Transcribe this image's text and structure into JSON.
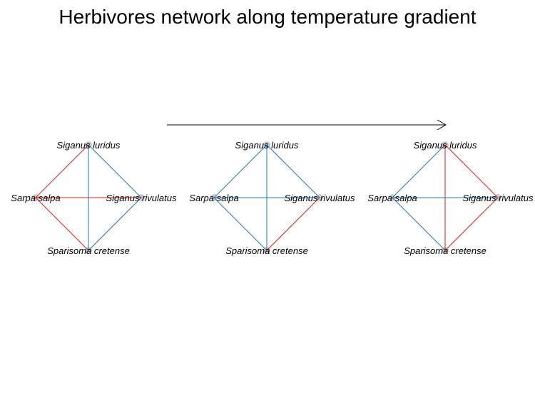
{
  "title": "Herbivores network along temperature gradient",
  "colors": {
    "positive": "#1f78b4",
    "negative": "#e31a1c",
    "node": "#cccccc",
    "arrow": "#000000"
  },
  "species": [
    "Siganus luridus",
    "Sarpa salpa",
    "Siganus rivulatus",
    "Sparisoma cretense"
  ],
  "networks": [
    {
      "edges": [
        {
          "from": "Siganus luridus",
          "to": "Sarpa salpa",
          "sign": "negative"
        },
        {
          "from": "Siganus luridus",
          "to": "Siganus rivulatus",
          "sign": "positive"
        },
        {
          "from": "Siganus luridus",
          "to": "Sparisoma cretense",
          "sign": "positive"
        },
        {
          "from": "Sarpa salpa",
          "to": "Siganus rivulatus",
          "sign": "negative"
        },
        {
          "from": "Sarpa salpa",
          "to": "Sparisoma cretense",
          "sign": "negative"
        },
        {
          "from": "Siganus rivulatus",
          "to": "Sparisoma cretense",
          "sign": "positive"
        }
      ]
    },
    {
      "edges": [
        {
          "from": "Siganus luridus",
          "to": "Sarpa salpa",
          "sign": "positive"
        },
        {
          "from": "Siganus luridus",
          "to": "Siganus rivulatus",
          "sign": "positive"
        },
        {
          "from": "Siganus luridus",
          "to": "Sparisoma cretense",
          "sign": "positive"
        },
        {
          "from": "Sarpa salpa",
          "to": "Siganus rivulatus",
          "sign": "positive"
        },
        {
          "from": "Sarpa salpa",
          "to": "Sparisoma cretense",
          "sign": "positive"
        },
        {
          "from": "Siganus rivulatus",
          "to": "Sparisoma cretense",
          "sign": "negative"
        }
      ]
    },
    {
      "edges": [
        {
          "from": "Siganus luridus",
          "to": "Sarpa salpa",
          "sign": "positive"
        },
        {
          "from": "Siganus luridus",
          "to": "Siganus rivulatus",
          "sign": "negative"
        },
        {
          "from": "Siganus luridus",
          "to": "Sparisoma cretense",
          "sign": "negative"
        },
        {
          "from": "Sarpa salpa",
          "to": "Siganus rivulatus",
          "sign": "positive"
        },
        {
          "from": "Sarpa salpa",
          "to": "Sparisoma cretense",
          "sign": "positive"
        },
        {
          "from": "Siganus rivulatus",
          "to": "Sparisoma cretense",
          "sign": "negative"
        }
      ]
    }
  ]
}
